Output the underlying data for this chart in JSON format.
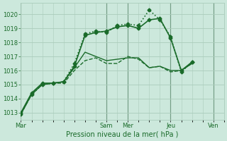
{
  "xlabel": "Pression niveau de la mer( hPa )",
  "bg_color": "#cce8dc",
  "grid_color": "#aaccbb",
  "line_color": "#1a6b2a",
  "vline_color": "#336644",
  "ylim": [
    1012.5,
    1020.8
  ],
  "yticks": [
    1013,
    1014,
    1015,
    1016,
    1017,
    1018,
    1019,
    1020
  ],
  "day_labels": [
    "Mar",
    "",
    "Sam",
    "Mer",
    "",
    "Jeu",
    "",
    "Ven"
  ],
  "day_positions": [
    0,
    24,
    48,
    60,
    72,
    84,
    96,
    108
  ],
  "vline_positions": [
    0,
    48,
    60,
    84,
    108
  ],
  "xlim": [
    0,
    114
  ],
  "series": [
    {
      "x": [
        0,
        6,
        12,
        18,
        24,
        30,
        36,
        42,
        48,
        54,
        60,
        66,
        72,
        78,
        84,
        90,
        96
      ],
      "y": [
        1012.9,
        1014.3,
        1015.0,
        1015.1,
        1015.1,
        1016.0,
        1016.7,
        1016.9,
        1016.5,
        1016.5,
        1017.0,
        1016.8,
        1016.2,
        1016.3,
        1015.9,
        1016.0,
        1016.5
      ],
      "marker": "",
      "markersize": 0,
      "linewidth": 1.0,
      "linestyle": "--",
      "zorder": 2
    },
    {
      "x": [
        0,
        6,
        12,
        18,
        24,
        30,
        36,
        42,
        48,
        54,
        60,
        66,
        72,
        78,
        84,
        90,
        96
      ],
      "y": [
        1012.9,
        1014.3,
        1015.0,
        1015.1,
        1015.2,
        1016.2,
        1017.3,
        1017.0,
        1016.7,
        1016.8,
        1016.9,
        1016.9,
        1016.2,
        1016.3,
        1016.0,
        1016.0,
        1016.5
      ],
      "marker": "",
      "markersize": 0,
      "linewidth": 1.0,
      "linestyle": "-",
      "zorder": 2
    },
    {
      "x": [
        0,
        6,
        12,
        18,
        24,
        30,
        36,
        42,
        48,
        54,
        60,
        66,
        72,
        78,
        84,
        90,
        96
      ],
      "y": [
        1013.0,
        1014.4,
        1015.1,
        1015.1,
        1015.2,
        1016.3,
        1018.5,
        1018.7,
        1018.8,
        1019.1,
        1019.2,
        1019.0,
        1019.6,
        1019.7,
        1018.3,
        1016.0,
        1016.6
      ],
      "marker": "D",
      "markersize": 2.5,
      "linewidth": 1.2,
      "linestyle": "-",
      "zorder": 4
    },
    {
      "x": [
        0,
        6,
        12,
        18,
        24,
        30,
        36,
        42,
        48,
        54,
        60,
        66,
        72,
        78,
        84,
        90,
        96
      ],
      "y": [
        1012.9,
        1014.3,
        1015.0,
        1015.1,
        1015.2,
        1016.5,
        1018.6,
        1018.8,
        1018.7,
        1019.2,
        1019.3,
        1019.2,
        1020.3,
        1019.6,
        1018.4,
        1015.9,
        1016.6
      ],
      "marker": "D",
      "markersize": 2.5,
      "linewidth": 1.2,
      "linestyle": ":",
      "zorder": 4
    }
  ],
  "xlabel_fontsize": 7,
  "tick_fontsize": 6
}
